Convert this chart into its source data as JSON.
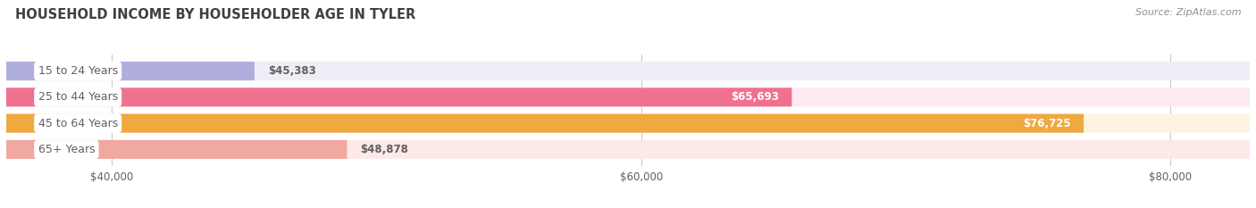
{
  "title": "HOUSEHOLD INCOME BY HOUSEHOLDER AGE IN TYLER",
  "source": "Source: ZipAtlas.com",
  "categories": [
    "15 to 24 Years",
    "25 to 44 Years",
    "45 to 64 Years",
    "65+ Years"
  ],
  "values": [
    45383,
    65693,
    76725,
    48878
  ],
  "bar_colors": [
    "#b0aedd",
    "#f07090",
    "#f0a840",
    "#f0a8a0"
  ],
  "bar_bg_colors": [
    "#eeeef6",
    "#fdeaf2",
    "#fef3e2",
    "#fdeae8"
  ],
  "value_labels": [
    "$45,383",
    "$65,693",
    "$76,725",
    "$48,878"
  ],
  "value_inside": [
    false,
    true,
    true,
    false
  ],
  "xlim_min": 36000,
  "xlim_max": 83000,
  "xticks": [
    40000,
    60000,
    80000
  ],
  "xticklabels": [
    "$40,000",
    "$60,000",
    "$80,000"
  ],
  "background_color": "#ffffff",
  "bar_area_bg": "#f0f0f0",
  "title_color": "#404040",
  "label_color": "#606060",
  "source_color": "#909090",
  "grid_color": "#cccccc"
}
